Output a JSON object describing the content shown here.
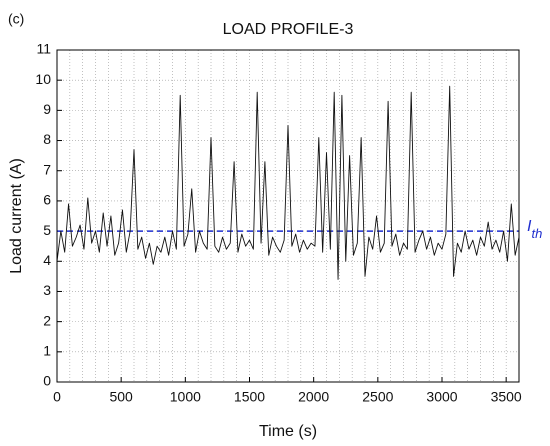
{
  "chart_data": {
    "type": "line",
    "panel_label": "(c)",
    "title": "LOAD PROFILE-3",
    "x_label": "Time (s)",
    "y_label": "Load current (A)",
    "xlim": [
      0,
      3600
    ],
    "ylim": [
      0,
      11
    ],
    "xticks": [
      0,
      500,
      1000,
      1500,
      2000,
      2500,
      3000,
      3500
    ],
    "yticks": [
      0,
      1,
      2,
      3,
      4,
      5,
      6,
      7,
      8,
      9,
      10,
      11
    ],
    "grid": true,
    "threshold": {
      "value": 5,
      "label": "I",
      "subscript": "th",
      "color": "#1f2ecf"
    },
    "x": [
      0,
      30,
      60,
      90,
      120,
      150,
      180,
      210,
      240,
      270,
      300,
      330,
      360,
      390,
      420,
      450,
      480,
      510,
      540,
      570,
      600,
      630,
      660,
      690,
      720,
      750,
      780,
      810,
      840,
      870,
      900,
      930,
      960,
      990,
      1020,
      1050,
      1080,
      1110,
      1140,
      1170,
      1200,
      1230,
      1260,
      1290,
      1320,
      1350,
      1380,
      1410,
      1440,
      1470,
      1500,
      1530,
      1560,
      1590,
      1620,
      1650,
      1680,
      1710,
      1740,
      1770,
      1800,
      1830,
      1860,
      1890,
      1920,
      1950,
      1980,
      2010,
      2040,
      2070,
      2100,
      2130,
      2160,
      2190,
      2220,
      2250,
      2280,
      2310,
      2340,
      2370,
      2400,
      2430,
      2460,
      2490,
      2520,
      2550,
      2580,
      2610,
      2640,
      2670,
      2700,
      2730,
      2760,
      2790,
      2820,
      2850,
      2880,
      2910,
      2940,
      2970,
      3000,
      3030,
      3060,
      3090,
      3120,
      3150,
      3180,
      3210,
      3240,
      3270,
      3300,
      3330,
      3360,
      3390,
      3420,
      3450,
      3480,
      3510,
      3540,
      3570,
      3600
    ],
    "series": [
      {
        "name": "Load current",
        "color": "#111111",
        "values": [
          4.0,
          5.0,
          4.3,
          5.9,
          4.5,
          4.8,
          5.2,
          4.4,
          6.1,
          4.6,
          5.0,
          4.3,
          5.6,
          4.5,
          5.5,
          4.2,
          4.6,
          5.7,
          4.3,
          5.0,
          7.7,
          4.4,
          4.8,
          4.1,
          4.6,
          3.9,
          4.5,
          4.3,
          4.8,
          4.2,
          5.0,
          4.4,
          9.5,
          4.5,
          4.9,
          6.4,
          4.3,
          5.0,
          4.6,
          4.4,
          8.1,
          4.5,
          4.3,
          4.8,
          4.4,
          4.6,
          7.3,
          4.3,
          4.9,
          4.5,
          4.7,
          4.4,
          9.6,
          4.6,
          7.3,
          4.2,
          4.8,
          4.5,
          4.3,
          4.7,
          8.5,
          4.5,
          4.9,
          4.3,
          4.7,
          4.4,
          4.6,
          4.5,
          8.1,
          4.3,
          7.6,
          4.4,
          9.6,
          3.4,
          9.5,
          4.0,
          7.5,
          4.2,
          4.6,
          8.1,
          3.5,
          4.8,
          4.4,
          5.5,
          4.3,
          4.6,
          9.3,
          4.5,
          4.9,
          4.2,
          4.6,
          4.4,
          9.6,
          4.3,
          4.7,
          5.0,
          4.4,
          4.8,
          4.2,
          4.6,
          4.4,
          4.9,
          9.8,
          3.5,
          4.6,
          4.3,
          5.0,
          4.4,
          4.7,
          4.2,
          4.8,
          4.5,
          5.3,
          4.4,
          4.7,
          4.3,
          5.0,
          4.0,
          5.9,
          4.2,
          4.8
        ]
      }
    ]
  }
}
